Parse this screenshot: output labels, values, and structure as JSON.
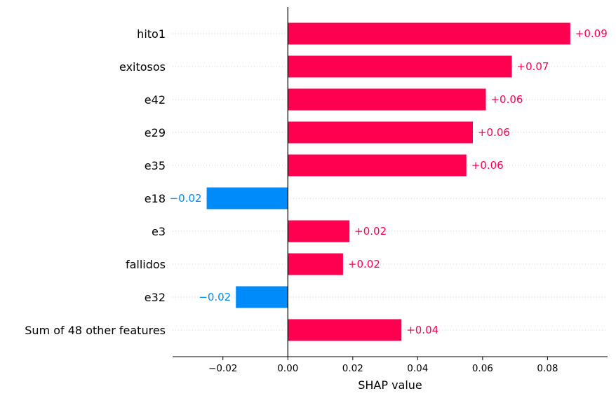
{
  "chart_data": {
    "type": "bar",
    "orientation": "horizontal",
    "categories": [
      "hito1",
      "exitosos",
      "e42",
      "e29",
      "e35",
      "e18",
      "e3",
      "fallidos",
      "e32",
      "Sum of 48 other features"
    ],
    "values": [
      0.087,
      0.069,
      0.061,
      0.057,
      0.055,
      -0.025,
      0.019,
      0.017,
      -0.016,
      0.035
    ],
    "value_labels": [
      "+0.09",
      "+0.07",
      "+0.06",
      "+0.06",
      "+0.06",
      "−0.02",
      "+0.02",
      "+0.02",
      "−0.02",
      "+0.04"
    ],
    "xlabel": "SHAP value",
    "xlim": [
      -0.0355,
      0.0985
    ],
    "xticks": [
      -0.02,
      0.0,
      0.02,
      0.04,
      0.06,
      0.08
    ],
    "xtick_labels": [
      "−0.02",
      "0.00",
      "0.02",
      "0.04",
      "0.06",
      "0.08"
    ],
    "colors": {
      "positive": "#ff0051",
      "negative": "#008bfb"
    },
    "grid": false,
    "legend": "none"
  }
}
